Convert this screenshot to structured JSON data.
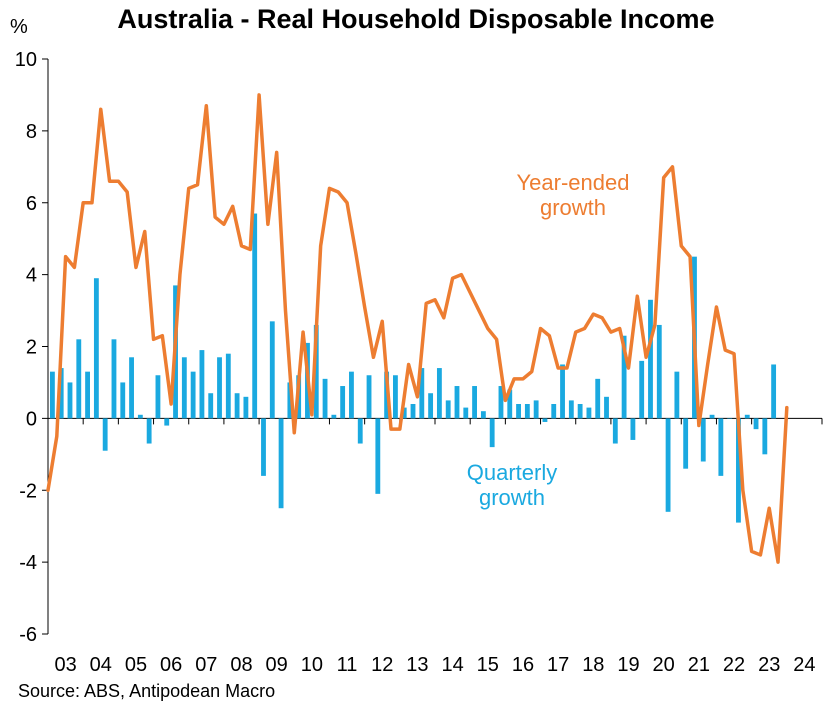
{
  "chart_data": {
    "type": "bar+line",
    "title": "Australia - Real Household Disposable Income",
    "ylabel": "%",
    "ylim": [
      -6,
      10
    ],
    "yticks": [
      10,
      8,
      6,
      4,
      2,
      0,
      -2,
      -4,
      -6
    ],
    "xticks": [
      "03",
      "04",
      "05",
      "06",
      "07",
      "08",
      "09",
      "10",
      "11",
      "12",
      "13",
      "14",
      "15",
      "16",
      "17",
      "18",
      "19",
      "20",
      "21",
      "22",
      "23",
      "24"
    ],
    "x_start_year": 2003,
    "x_periods_per_year": 4,
    "series": [
      {
        "name": "Quarterly growth",
        "type": "bar",
        "color": "#1AA9E0",
        "values": [
          1.3,
          1.4,
          1.0,
          2.2,
          1.3,
          3.9,
          -0.9,
          2.2,
          1.0,
          1.7,
          0.1,
          -0.7,
          1.2,
          -0.2,
          3.7,
          1.7,
          1.3,
          1.9,
          0.7,
          1.7,
          1.8,
          0.7,
          0.6,
          5.7,
          -1.6,
          2.7,
          -2.5,
          1.0,
          1.2,
          2.1,
          2.6,
          1.1,
          0.1,
          0.9,
          1.3,
          -0.7,
          1.2,
          -2.1,
          1.3,
          1.2,
          0.3,
          0.4,
          1.4,
          0.7,
          1.4,
          0.5,
          0.9,
          0.3,
          0.9,
          0.2,
          -0.8,
          0.9,
          0.8,
          0.4,
          0.4,
          0.5,
          -0.1,
          0.4,
          1.5,
          0.5,
          0.4,
          0.3,
          1.1,
          0.6,
          -0.7,
          2.3,
          -0.6,
          1.6,
          3.3,
          2.6,
          -2.6,
          1.3,
          -1.4,
          4.5,
          -1.2,
          0.1,
          -1.6,
          0.0,
          -2.9,
          0.1,
          -0.3,
          -1.0,
          1.5
        ]
      },
      {
        "name": "Year-ended growth",
        "type": "line",
        "color": "#ED7D31",
        "values": [
          -2.0,
          -0.5,
          4.5,
          4.2,
          6.0,
          6.0,
          8.6,
          6.6,
          6.6,
          6.3,
          4.2,
          5.2,
          2.2,
          2.3,
          0.4,
          4.0,
          6.4,
          6.5,
          8.7,
          5.6,
          5.4,
          5.9,
          4.8,
          4.7,
          9.0,
          5.4,
          7.4,
          3.0,
          -0.4,
          2.4,
          0.1,
          4.8,
          6.4,
          6.3,
          6.0,
          4.6,
          3.1,
          1.7,
          2.7,
          -0.3,
          -0.3,
          1.5,
          0.6,
          3.2,
          3.3,
          2.8,
          3.9,
          4.0,
          3.5,
          3.0,
          2.5,
          2.2,
          0.5,
          1.1,
          1.1,
          1.3,
          2.5,
          2.3,
          1.4,
          1.4,
          2.4,
          2.5,
          2.9,
          2.8,
          2.4,
          2.5,
          1.4,
          3.4,
          1.7,
          2.6,
          6.7,
          7.0,
          4.8,
          4.5,
          -0.2,
          1.5,
          3.1,
          1.9,
          1.8,
          -2.0,
          -3.7,
          -3.8,
          -2.5,
          -4.0,
          0.3
        ]
      }
    ],
    "annotations": {
      "year_ended": [
        "Year-ended",
        "growth"
      ],
      "quarterly": [
        "Quarterly",
        "growth"
      ]
    }
  },
  "unit_label": "%",
  "source": "Source: ABS, Antipodean Macro"
}
